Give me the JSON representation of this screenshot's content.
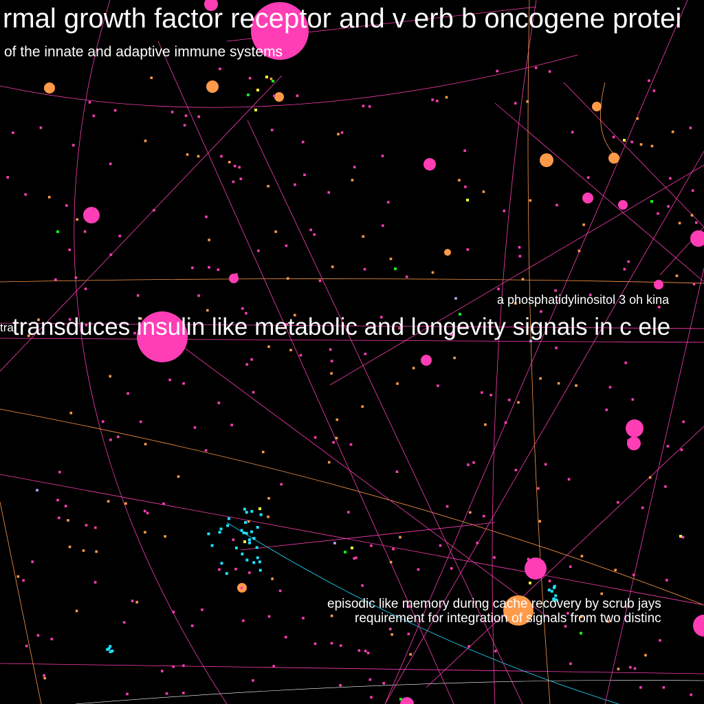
{
  "diagram": {
    "type": "citation-network-map",
    "background": "#000000",
    "palette": {
      "pink": "#ff3eb5",
      "orange": "#ff9a4a",
      "cyan": "#1fe0ff",
      "yellow": "#ffff33",
      "green": "#19e619",
      "lavender": "#c8a0ff",
      "label": "#ffffff"
    },
    "labels": {
      "egfr": "rmal growth factor receptor and v erb b oncogene protei",
      "immune": "of the innate and adaptive immune systems",
      "pi3k": "a phosphatidylinositol 3 oh kina",
      "insulin": "transduces insulin like metabolic and longevity signals in c ele",
      "left_fragment": "tra",
      "scrub_jays": "episodic like memory during cache recovery by scrub jays",
      "integration": "requirement for integration of signals from two distinc"
    }
  }
}
